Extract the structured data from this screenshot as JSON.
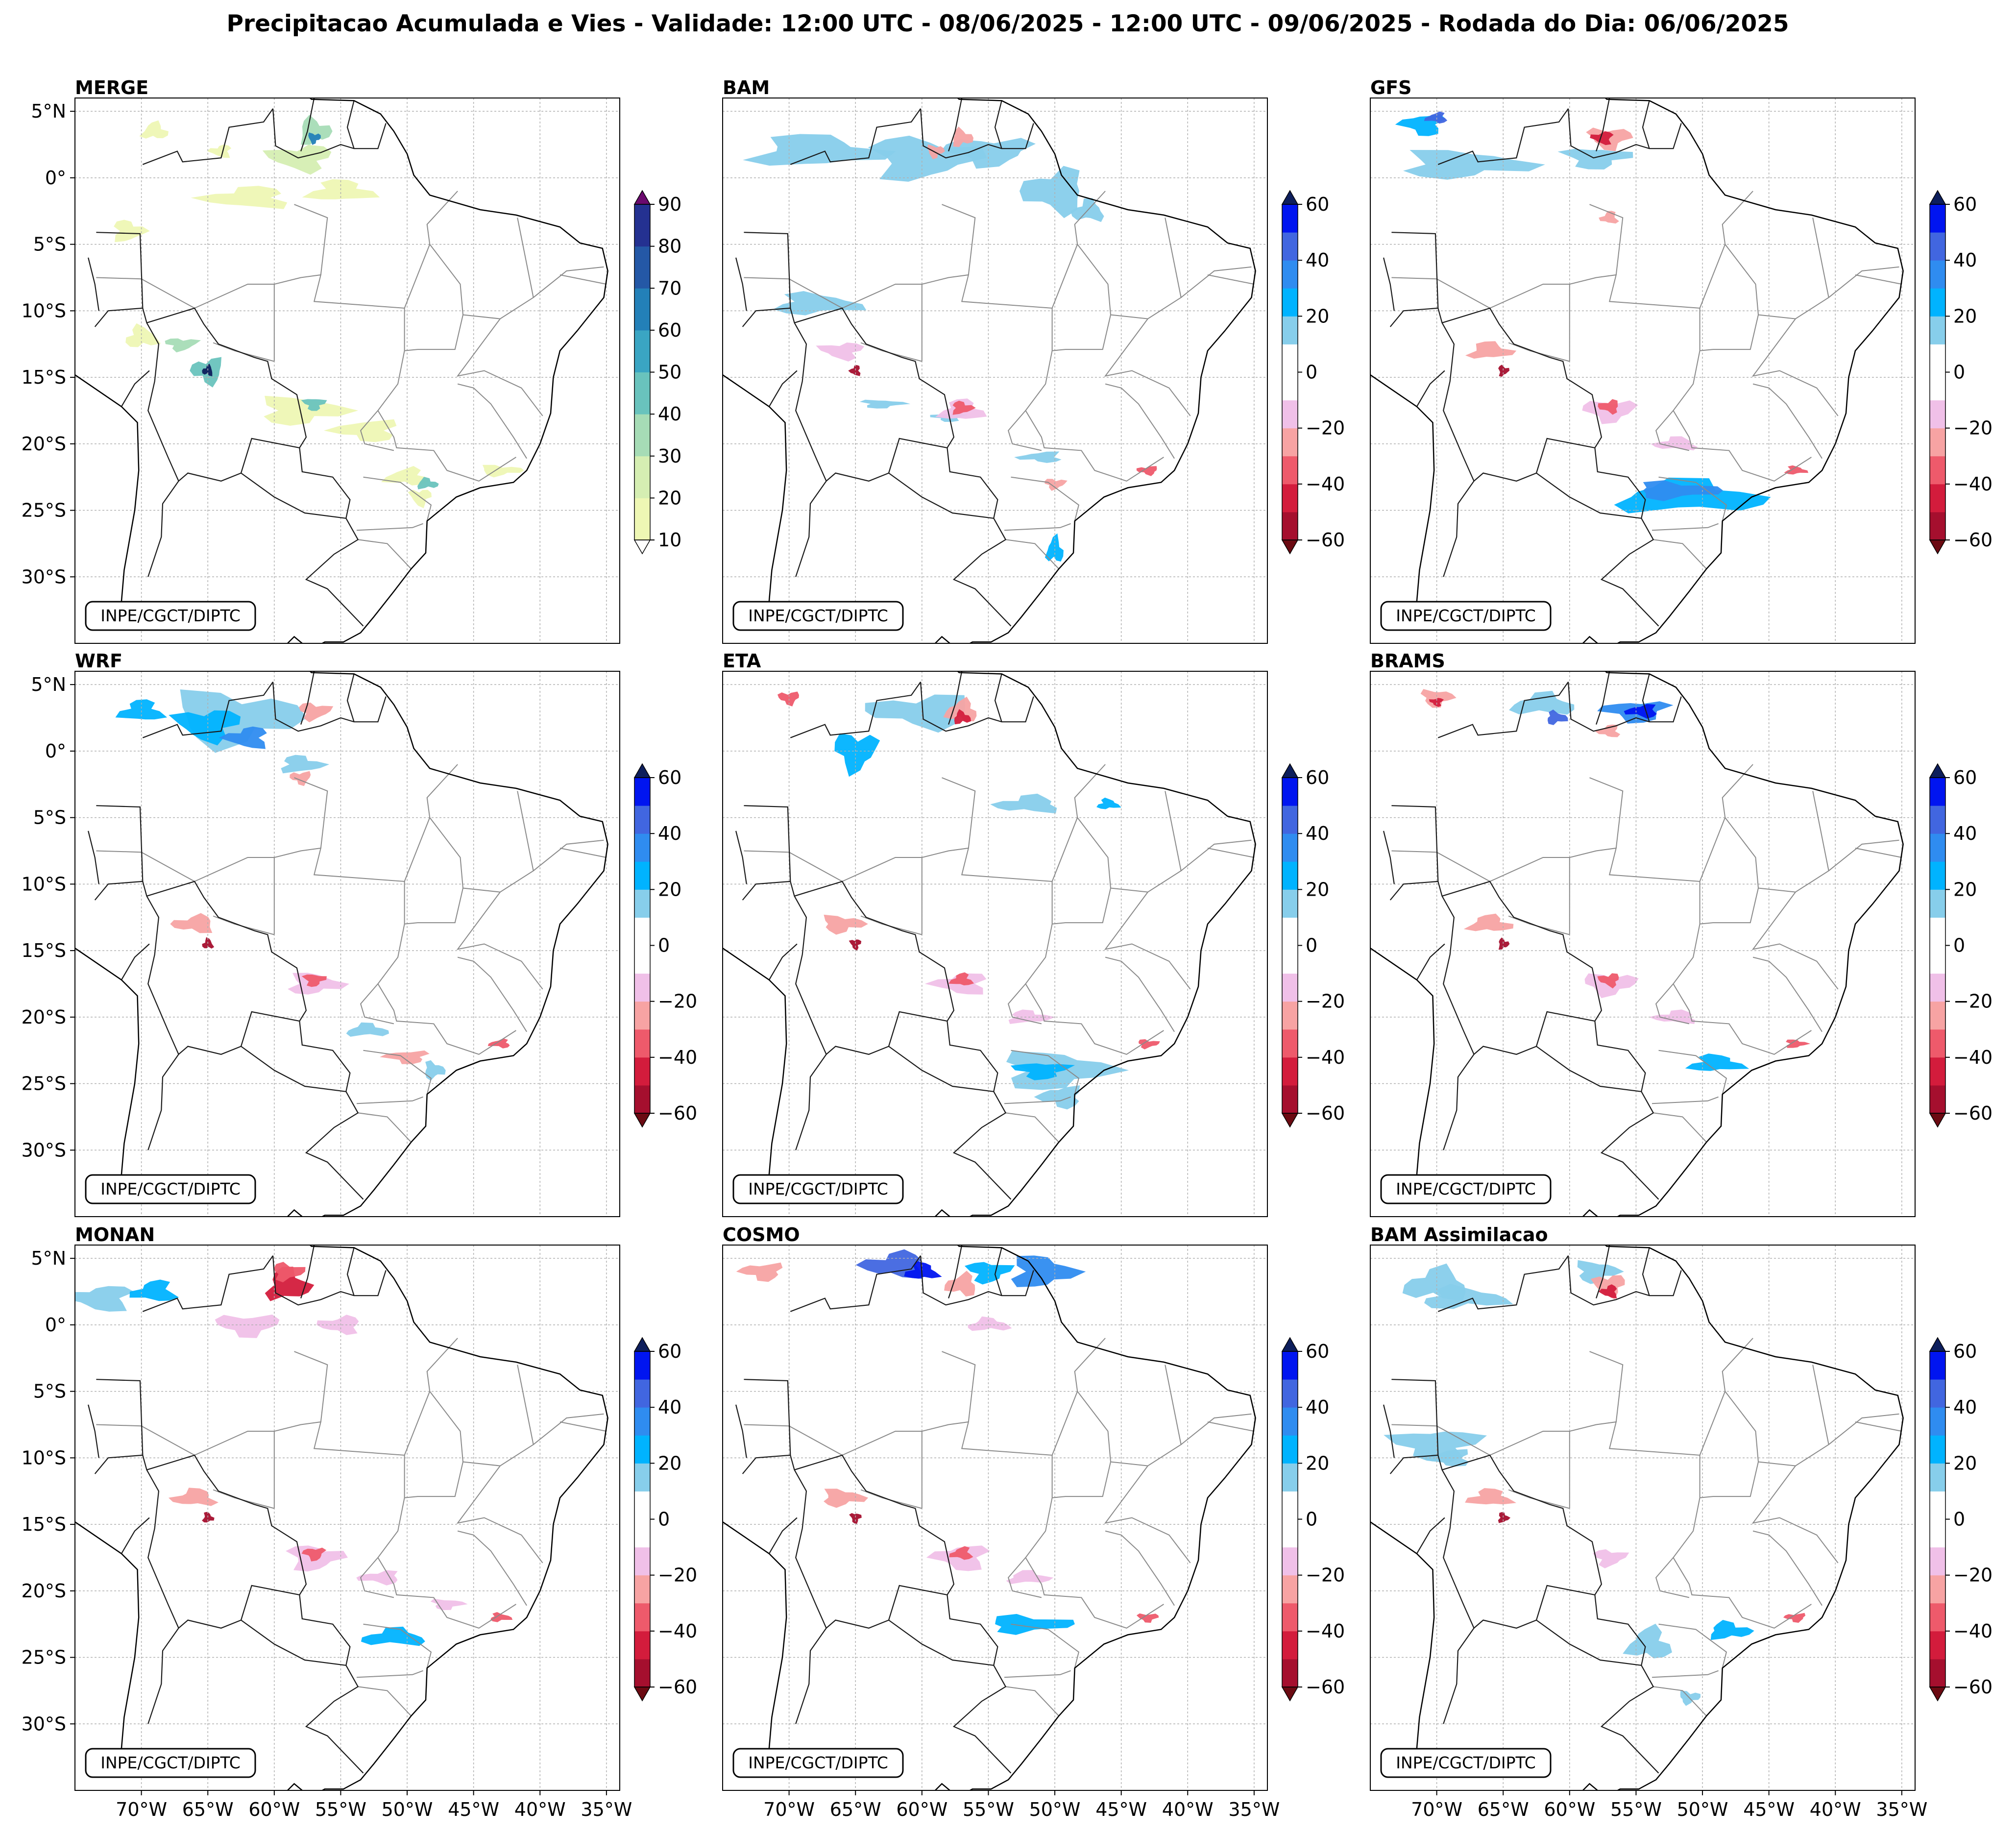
{
  "figure": {
    "title": "Precipitacao Acumulada e Vies - Validade: 12:00 UTC - 08/06/2025 - 12:00 UTC - 09/06/2025 - Rodada do Dia: 06/06/2025"
  },
  "chart_data": {
    "type": "heatmap",
    "title": "Precipitacao Acumulada e Vies - Validade: 12:00 UTC - 08/06/2025 - 12:00 UTC - 09/06/2025 - Rodada do Dia: 06/06/2025",
    "xlabel": "",
    "ylabel": "",
    "lon_range": [
      -75,
      -34
    ],
    "lat_range": [
      -35,
      6
    ],
    "lon_ticks": [
      -70,
      -65,
      -60,
      -55,
      -50,
      -45,
      -40,
      -35
    ],
    "lon_tick_labels": [
      "70°W",
      "65°W",
      "60°W",
      "55°W",
      "50°W",
      "45°W",
      "40°W",
      "35°W"
    ],
    "lat_ticks": [
      5,
      0,
      -5,
      -10,
      -15,
      -20,
      -25,
      -30
    ],
    "lat_tick_labels": [
      "5°N",
      "0°",
      "5°S",
      "10°S",
      "15°S",
      "20°S",
      "25°S",
      "30°S"
    ],
    "credit": "INPE/CGCT/DIPTC",
    "precip_colorbar": {
      "levels": [
        10,
        20,
        30,
        40,
        50,
        60,
        70,
        80,
        90
      ],
      "labels": [
        "10",
        "20",
        "30",
        "40",
        "50",
        "60",
        "70",
        "80",
        "90"
      ],
      "colors": [
        "#eef7b4",
        "#d5eeb2",
        "#a6dcb6",
        "#69c3bd",
        "#3aa5c3",
        "#2380b8",
        "#2458a6",
        "#243191",
        "#0d1e5c"
      ],
      "under_color": "#ffffff",
      "over_color": "#6b0a6e"
    },
    "bias_colorbar": {
      "levels": [
        -60,
        -50,
        -40,
        -30,
        -20,
        -10,
        0,
        10,
        20,
        30,
        40,
        50,
        60
      ],
      "labels": [
        "−60",
        "−40",
        "−20",
        "0",
        "20",
        "40",
        "60"
      ],
      "label_values": [
        -60,
        -40,
        -20,
        0,
        20,
        40,
        60
      ],
      "colors": [
        "#a50f2e",
        "#d31c3c",
        "#ee5a6b",
        "#f7a3a3",
        "#f0c0e8",
        "#ffffff",
        "#ffffff",
        "#87ceeb",
        "#00b3ff",
        "#2f8cf0",
        "#4166e0",
        "#0015f0"
      ],
      "under_color": "#6b0a12",
      "over_color": "#0d1e5c"
    },
    "panels": [
      {
        "name": "MERGE",
        "kind": "precip",
        "blobs": [
          [
            -69,
            3.5,
            1.2,
            0.8,
            0
          ],
          [
            -57,
            3.5,
            1.5,
            1.2,
            2
          ],
          [
            -57,
            3.0,
            0.6,
            0.5,
            5
          ],
          [
            -58,
            1.5,
            3,
            1.2,
            1
          ],
          [
            -62,
            -1.5,
            4,
            1,
            0
          ],
          [
            -55,
            -1,
            3,
            1,
            0
          ],
          [
            -71,
            -4,
            1.5,
            1,
            0
          ],
          [
            -67,
            -12.5,
            1.5,
            0.6,
            2
          ],
          [
            -65,
            -14.5,
            1.5,
            1.2,
            3
          ],
          [
            -65,
            -14.5,
            0.5,
            0.5,
            8
          ],
          [
            -70,
            -12,
            1.5,
            1,
            0
          ],
          [
            -58,
            -17.5,
            4,
            1.3,
            0
          ],
          [
            -57,
            -17,
            1,
            0.6,
            3
          ],
          [
            -53,
            -19,
            3,
            1,
            0
          ],
          [
            -50,
            -22.5,
            2,
            0.8,
            0
          ],
          [
            -48.5,
            -23,
            1,
            0.5,
            3
          ],
          [
            -43,
            -22,
            2,
            0.5,
            0
          ],
          [
            -49,
            -24,
            1,
            0.8,
            0
          ],
          [
            -64,
            2,
            1,
            0.6,
            0
          ]
        ]
      },
      {
        "name": "BAM",
        "kind": "bias",
        "blobs": [
          [
            -68,
            2,
            6,
            1.5,
            7
          ],
          [
            -60,
            1.5,
            5,
            2,
            7
          ],
          [
            -55,
            2,
            4,
            1.3,
            7
          ],
          [
            -50,
            -1,
            3,
            2,
            7
          ],
          [
            -47.5,
            -2.5,
            1.5,
            1,
            7
          ],
          [
            -68,
            -9.5,
            4,
            1,
            7
          ],
          [
            -63,
            -17,
            2,
            0.4,
            7
          ],
          [
            -58,
            -18,
            1.5,
            0.4,
            7
          ],
          [
            -51,
            -21,
            2,
            0.5,
            7
          ],
          [
            -50,
            -28,
            0.8,
            1.2,
            8
          ],
          [
            -57,
            3,
            1,
            0.8,
            3
          ],
          [
            -59,
            2,
            0.8,
            0.6,
            3
          ],
          [
            -66,
            -13,
            2,
            0.8,
            4
          ],
          [
            -65,
            -14.5,
            0.5,
            0.5,
            0
          ],
          [
            -57,
            -17.5,
            2,
            1,
            4
          ],
          [
            -57,
            -17.3,
            1,
            0.6,
            2
          ],
          [
            -50,
            -23,
            1,
            0.5,
            3
          ],
          [
            -43,
            -22,
            1,
            0.4,
            2
          ]
        ]
      },
      {
        "name": "GFS",
        "kind": "bias",
        "blobs": [
          [
            -68,
            1,
            6,
            1.3,
            7
          ],
          [
            -58,
            1.5,
            3,
            1,
            7
          ],
          [
            -71,
            4,
            2,
            1,
            8
          ],
          [
            -70,
            4.5,
            1,
            0.5,
            10
          ],
          [
            -51,
            -24,
            7,
            1.5,
            8
          ],
          [
            -52,
            -23.5,
            4,
            0.8,
            9
          ],
          [
            -57,
            3,
            2,
            1,
            3
          ],
          [
            -57.5,
            3,
            1,
            0.6,
            1
          ],
          [
            -57,
            -3,
            0.8,
            0.6,
            3
          ],
          [
            -66,
            -13,
            2,
            0.8,
            3
          ],
          [
            -65,
            -14.5,
            0.5,
            0.5,
            0
          ],
          [
            -57,
            -17.5,
            2.5,
            1,
            4
          ],
          [
            -57,
            -17.2,
            1,
            0.6,
            2
          ],
          [
            -52,
            -20,
            2,
            0.6,
            4
          ],
          [
            -43,
            -22,
            1,
            0.4,
            2
          ]
        ]
      },
      {
        "name": "WRF",
        "kind": "bias",
        "blobs": [
          [
            -63,
            2.5,
            6,
            2.5,
            7
          ],
          [
            -65,
            2,
            3,
            1.5,
            8
          ],
          [
            -62,
            1,
            2,
            1,
            9
          ],
          [
            -70,
            3,
            2,
            1,
            8
          ],
          [
            -58,
            -1,
            2,
            0.8,
            7
          ],
          [
            -57,
            3,
            1.5,
            0.8,
            3
          ],
          [
            -58,
            -2,
            1,
            0.6,
            3
          ],
          [
            -66,
            -13,
            2,
            0.8,
            3
          ],
          [
            -65,
            -14.5,
            0.5,
            0.5,
            0
          ],
          [
            -57,
            -17.5,
            2.5,
            1,
            4
          ],
          [
            -57,
            -17.2,
            1,
            0.6,
            2
          ],
          [
            -50,
            -23,
            2,
            0.6,
            3
          ],
          [
            -43,
            -22,
            1,
            0.4,
            2
          ],
          [
            -53,
            -21,
            2,
            0.6,
            7
          ],
          [
            -48,
            -24,
            1,
            0.8,
            7
          ]
        ]
      },
      {
        "name": "ETA",
        "kind": "bias",
        "blobs": [
          [
            -65,
            0,
            2,
            1.8,
            8
          ],
          [
            -60,
            3,
            5,
            1.5,
            7
          ],
          [
            -52,
            -4,
            3,
            0.8,
            7
          ],
          [
            -46,
            -4,
            1,
            0.5,
            8
          ],
          [
            -50,
            -24,
            5,
            1.8,
            7
          ],
          [
            -51,
            -24,
            2.5,
            0.8,
            8
          ],
          [
            -49.5,
            -26,
            2,
            1,
            7
          ],
          [
            -57,
            3,
            1.5,
            1,
            3
          ],
          [
            -57,
            2.5,
            0.8,
            0.6,
            1
          ],
          [
            -66,
            -13,
            2,
            0.8,
            3
          ],
          [
            -65,
            -14.5,
            0.5,
            0.5,
            0
          ],
          [
            -57,
            -17.5,
            2.5,
            1,
            4
          ],
          [
            -57,
            -17.2,
            1,
            0.6,
            2
          ],
          [
            -52,
            -20,
            2,
            0.6,
            4
          ],
          [
            -43,
            -22,
            1,
            0.4,
            2
          ],
          [
            -70,
            4,
            1,
            0.6,
            2
          ]
        ]
      },
      {
        "name": "BRAMS",
        "kind": "bias",
        "blobs": [
          [
            -55,
            3,
            3,
            1,
            9
          ],
          [
            -54.5,
            3,
            1.5,
            0.6,
            11
          ],
          [
            -62,
            3.5,
            3,
            1,
            7
          ],
          [
            -61,
            2.5,
            1,
            0.6,
            10
          ],
          [
            -70,
            4,
            1.5,
            0.8,
            3
          ],
          [
            -70,
            3.7,
            0.6,
            0.4,
            1
          ],
          [
            -57,
            1.5,
            1,
            0.6,
            3
          ],
          [
            -66,
            -13,
            2,
            0.8,
            3
          ],
          [
            -65,
            -14.5,
            0.5,
            0.5,
            0
          ],
          [
            -57,
            -17.5,
            2.5,
            1,
            4
          ],
          [
            -57,
            -17.2,
            1,
            0.6,
            2
          ],
          [
            -52,
            -20,
            2,
            0.6,
            4
          ],
          [
            -49,
            -23.5,
            2.5,
            0.8,
            8
          ],
          [
            -43,
            -22,
            1,
            0.4,
            2
          ]
        ]
      },
      {
        "name": "MONAN",
        "kind": "bias",
        "blobs": [
          [
            -73,
            2,
            3,
            1.2,
            7
          ],
          [
            -69,
            2.5,
            2,
            1,
            8
          ],
          [
            -59,
            3,
            2,
            1.5,
            1
          ],
          [
            -59,
            4,
            1.5,
            0.8,
            2
          ],
          [
            -62,
            0,
            3,
            1,
            4
          ],
          [
            -55,
            0,
            2,
            0.8,
            4
          ],
          [
            -66,
            -13,
            2,
            0.8,
            3
          ],
          [
            -65,
            -14.5,
            0.5,
            0.5,
            0
          ],
          [
            -57,
            -17.5,
            2.5,
            1.2,
            4
          ],
          [
            -57,
            -17.2,
            1,
            0.6,
            2
          ],
          [
            -52,
            -19,
            2,
            0.6,
            4
          ],
          [
            -51,
            -23.5,
            3,
            0.8,
            8
          ],
          [
            -43,
            -22,
            1,
            0.4,
            2
          ],
          [
            -47,
            -21,
            1.5,
            0.5,
            4
          ]
        ]
      },
      {
        "name": "COSMO",
        "kind": "bias",
        "blobs": [
          [
            -62,
            4.5,
            3,
            1.2,
            10
          ],
          [
            -60,
            4,
            1.5,
            0.8,
            11
          ],
          [
            -51,
            4,
            3,
            1.5,
            9
          ],
          [
            -55,
            4,
            2,
            1,
            8
          ],
          [
            -72,
            4,
            2,
            0.8,
            3
          ],
          [
            -57,
            3,
            1.5,
            1,
            3
          ],
          [
            -55,
            0,
            2,
            0.6,
            4
          ],
          [
            -66,
            -13,
            2,
            0.8,
            3
          ],
          [
            -65,
            -14.5,
            0.5,
            0.5,
            0
          ],
          [
            -57,
            -17.5,
            2.5,
            1.2,
            4
          ],
          [
            -57,
            -17.2,
            1,
            0.6,
            2
          ],
          [
            -52,
            -19,
            2,
            0.6,
            4
          ],
          [
            -52,
            -22.5,
            4,
            0.8,
            8
          ],
          [
            -43,
            -22,
            1,
            0.4,
            2
          ]
        ]
      },
      {
        "name": "BAM Assimilacao",
        "kind": "bias",
        "blobs": [
          [
            -70,
            3,
            3,
            1.5,
            7
          ],
          [
            -68,
            2,
            4,
            1,
            7
          ],
          [
            -58,
            4,
            2,
            1,
            7
          ],
          [
            -70,
            -9,
            4,
            1.5,
            7
          ],
          [
            -69,
            -10,
            2,
            0.8,
            7
          ],
          [
            -54,
            -24,
            2,
            1.5,
            7
          ],
          [
            -48,
            -23,
            2,
            0.8,
            8
          ],
          [
            -51,
            -28,
            1,
            0.6,
            7
          ],
          [
            -57,
            3,
            1.5,
            1,
            3
          ],
          [
            -57,
            2.5,
            0.8,
            0.6,
            1
          ],
          [
            -66,
            -13,
            2,
            0.8,
            3
          ],
          [
            -65,
            -14.5,
            0.5,
            0.5,
            0
          ],
          [
            -57,
            -17.5,
            1.5,
            0.8,
            4
          ],
          [
            -43,
            -22,
            1,
            0.4,
            2
          ]
        ]
      }
    ]
  }
}
